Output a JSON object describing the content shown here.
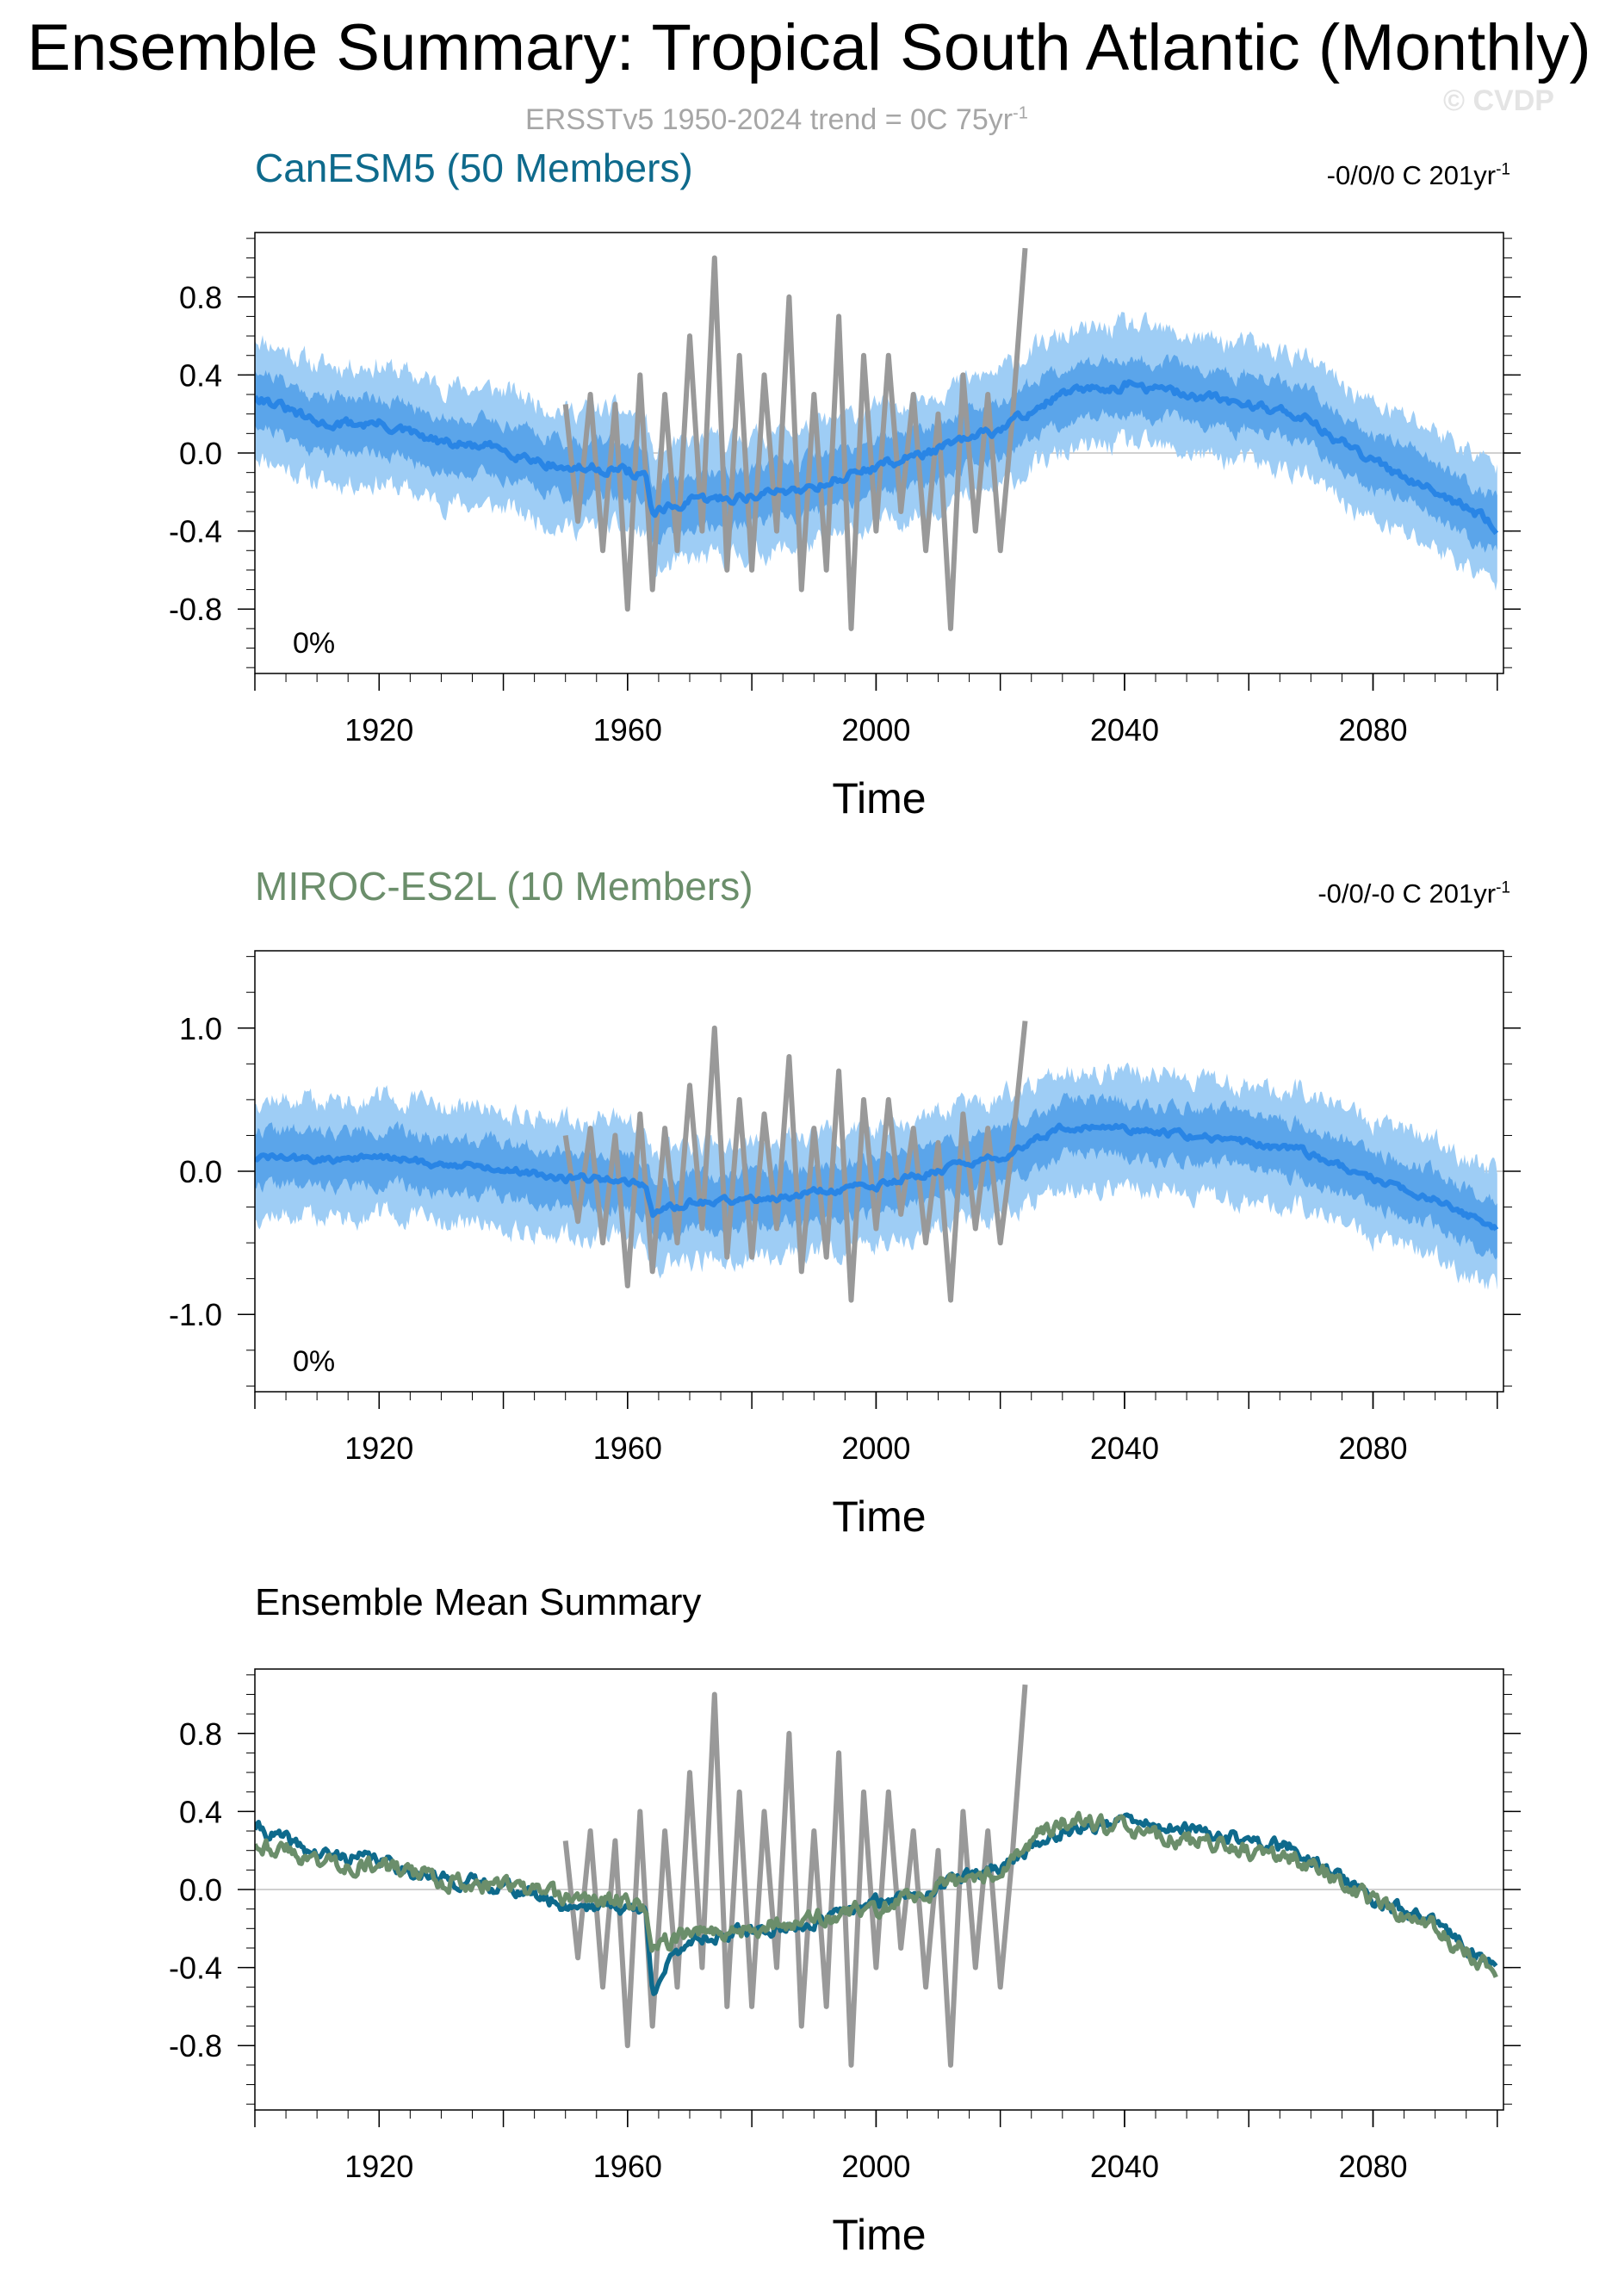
{
  "title": "Ensemble Summary: Tropical South Atlantic (Monthly)",
  "subtitle": {
    "text": "ERSSTv5 1950-2024 trend = 0C 75yr",
    "sup": "-1"
  },
  "watermark": "© CVDP",
  "colors": {
    "obs": "#999999",
    "spread_outer": "#9ecdf5",
    "spread_inner": "#4f9ee8",
    "ens_mean": "#2985e5",
    "canesm5_mean": "#0e6a8c",
    "miroc_mean": "#6b8e6b",
    "canesm5_title": "#0e6a8c",
    "miroc_title": "#6b8e6b",
    "zero_line": "#c0c0c0"
  },
  "chart_data": [
    {
      "type": "line",
      "id": "canesm5",
      "title": "CanESM5 (50 Members)",
      "stat": {
        "text": "-0/0/0 C 201yr",
        "sup": "-1"
      },
      "percent_label": "0%",
      "xlabel": "Time",
      "ylabel": "",
      "xlim": [
        1900,
        2101
      ],
      "ylim": [
        -1.13,
        1.13
      ],
      "x_ticks": [
        "1920",
        "1960",
        "2000",
        "2040",
        "2080"
      ],
      "y_ticks": [
        "0.8",
        "0.4",
        "0.0",
        "-0.4",
        "-0.8"
      ],
      "grid": false,
      "series": [
        {
          "name": "Ensemble mean",
          "x": [
            1900,
            1910,
            1920,
            1930,
            1940,
            1950,
            1958,
            1963,
            1964,
            1970,
            1980,
            1990,
            2000,
            2010,
            2020,
            2025,
            2030,
            2040,
            2050,
            2060,
            2068,
            2080,
            2090,
            2100
          ],
          "values": [
            0.3,
            0.15,
            0.15,
            0.05,
            0.02,
            -0.08,
            -0.08,
            -0.12,
            -0.32,
            -0.25,
            -0.22,
            -0.17,
            -0.07,
            0.02,
            0.12,
            0.22,
            0.3,
            0.35,
            0.3,
            0.25,
            0.2,
            -0.05,
            -0.18,
            -0.38
          ]
        },
        {
          "name": "ERSSTv5",
          "x": [
            1950,
            1952,
            1954,
            1956,
            1958,
            1960,
            1962,
            1964,
            1966,
            1968,
            1970,
            1972,
            1974,
            1976,
            1978,
            1980,
            1982,
            1984,
            1986,
            1988,
            1990,
            1992,
            1994,
            1996,
            1998,
            2000,
            2002,
            2004,
            2006,
            2008,
            2010,
            2012,
            2014,
            2016,
            2018,
            2020,
            2022,
            2024
          ],
          "values": [
            0.25,
            -0.35,
            0.3,
            -0.5,
            0.25,
            -0.8,
            0.4,
            -0.7,
            0.3,
            -0.5,
            0.6,
            -0.4,
            1.0,
            -0.6,
            0.5,
            -0.6,
            0.4,
            -0.4,
            0.8,
            -0.7,
            0.3,
            -0.6,
            0.7,
            -0.9,
            0.5,
            -0.4,
            0.5,
            -0.3,
            0.3,
            -0.5,
            0.2,
            -0.9,
            0.4,
            -0.4,
            0.3,
            -0.5,
            0.2,
            1.05
          ]
        }
      ]
    },
    {
      "type": "line",
      "id": "miroc",
      "title": "MIROC-ES2L (10 Members)",
      "stat": {
        "text": "-0/0/-0 C 201yr",
        "sup": "-1"
      },
      "percent_label": "0%",
      "xlabel": "Time",
      "ylabel": "",
      "xlim": [
        1900,
        2101
      ],
      "ylim": [
        -1.54,
        1.54
      ],
      "x_ticks": [
        "1920",
        "1960",
        "2000",
        "2040",
        "2080"
      ],
      "y_ticks": [
        "1.0",
        "0.0",
        "-1.0"
      ],
      "grid": false,
      "series": [
        {
          "name": "Ensemble mean",
          "x": [
            1900,
            1910,
            1920,
            1930,
            1940,
            1950,
            1958,
            1963,
            1964,
            1970,
            1980,
            1990,
            2000,
            2010,
            2020,
            2025,
            2030,
            2040,
            2050,
            2060,
            2068,
            2080,
            2090,
            2100
          ],
          "values": [
            0.1,
            0.08,
            0.1,
            0.05,
            0.02,
            -0.05,
            -0.05,
            -0.1,
            -0.3,
            -0.22,
            -0.2,
            -0.15,
            -0.1,
            0.0,
            0.1,
            0.2,
            0.3,
            0.3,
            0.25,
            0.2,
            0.15,
            -0.05,
            -0.2,
            -0.4
          ]
        },
        {
          "name": "ERSSTv5",
          "x": [
            1950,
            1952,
            1954,
            1956,
            1958,
            1960,
            1962,
            1964,
            1966,
            1968,
            1970,
            1972,
            1974,
            1976,
            1978,
            1980,
            1982,
            1984,
            1986,
            1988,
            1990,
            1992,
            1994,
            1996,
            1998,
            2000,
            2002,
            2004,
            2006,
            2008,
            2010,
            2012,
            2014,
            2016,
            2018,
            2020,
            2022,
            2024
          ],
          "values": [
            0.25,
            -0.35,
            0.3,
            -0.5,
            0.25,
            -0.8,
            0.4,
            -0.7,
            0.3,
            -0.5,
            0.6,
            -0.4,
            1.0,
            -0.6,
            0.5,
            -0.6,
            0.4,
            -0.4,
            0.8,
            -0.7,
            0.3,
            -0.6,
            0.7,
            -0.9,
            0.5,
            -0.4,
            0.5,
            -0.3,
            0.3,
            -0.5,
            0.2,
            -0.9,
            0.4,
            -0.4,
            0.3,
            -0.5,
            0.2,
            1.05
          ]
        }
      ]
    },
    {
      "type": "line",
      "id": "summary",
      "title": "Ensemble Mean Summary",
      "xlabel": "Time",
      "ylabel": "",
      "xlim": [
        1900,
        2101
      ],
      "ylim": [
        -1.13,
        1.13
      ],
      "x_ticks": [
        "1920",
        "1960",
        "2000",
        "2040",
        "2080"
      ],
      "y_ticks": [
        "0.8",
        "0.4",
        "0.0",
        "-0.4",
        "-0.8"
      ],
      "grid": false,
      "series": [
        {
          "name": "CanESM5",
          "x": [
            1900,
            1910,
            1920,
            1930,
            1940,
            1950,
            1958,
            1963,
            1964,
            1970,
            1980,
            1990,
            2000,
            2010,
            2020,
            2025,
            2030,
            2040,
            2050,
            2060,
            2068,
            2080,
            2090,
            2100
          ],
          "values": [
            0.32,
            0.18,
            0.15,
            0.05,
            0.02,
            -0.08,
            -0.08,
            -0.12,
            -0.5,
            -0.25,
            -0.22,
            -0.17,
            -0.07,
            0.02,
            0.12,
            0.22,
            0.3,
            0.35,
            0.3,
            0.25,
            0.2,
            -0.05,
            -0.18,
            -0.4
          ]
        },
        {
          "name": "MIROC-ES2L",
          "x": [
            1900,
            1910,
            1920,
            1930,
            1940,
            1950,
            1958,
            1963,
            1964,
            1970,
            1980,
            1990,
            2000,
            2010,
            2020,
            2025,
            2030,
            2040,
            2050,
            2060,
            2068,
            2080,
            2090,
            2100
          ],
          "values": [
            0.25,
            0.15,
            0.12,
            0.05,
            0.02,
            -0.05,
            -0.05,
            -0.1,
            -0.3,
            -0.22,
            -0.2,
            -0.15,
            -0.1,
            0.0,
            0.1,
            0.25,
            0.35,
            0.3,
            0.25,
            0.2,
            0.15,
            -0.05,
            -0.2,
            -0.45
          ]
        },
        {
          "name": "ERSSTv5",
          "x": [
            1950,
            1952,
            1954,
            1956,
            1958,
            1960,
            1962,
            1964,
            1966,
            1968,
            1970,
            1972,
            1974,
            1976,
            1978,
            1980,
            1982,
            1984,
            1986,
            1988,
            1990,
            1992,
            1994,
            1996,
            1998,
            2000,
            2002,
            2004,
            2006,
            2008,
            2010,
            2012,
            2014,
            2016,
            2018,
            2020,
            2022,
            2024
          ],
          "values": [
            0.25,
            -0.35,
            0.3,
            -0.5,
            0.25,
            -0.8,
            0.4,
            -0.7,
            0.3,
            -0.5,
            0.6,
            -0.4,
            1.0,
            -0.6,
            0.5,
            -0.6,
            0.4,
            -0.4,
            0.8,
            -0.7,
            0.3,
            -0.6,
            0.7,
            -0.9,
            0.5,
            -0.4,
            0.5,
            -0.3,
            0.3,
            -0.5,
            0.2,
            -0.9,
            0.4,
            -0.4,
            0.3,
            -0.5,
            0.2,
            1.05
          ]
        }
      ]
    }
  ]
}
